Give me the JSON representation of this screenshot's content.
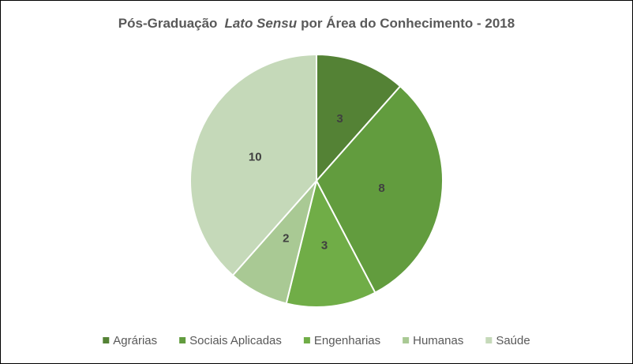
{
  "chart_data": {
    "type": "pie",
    "title": [
      "Pós-Graduação",
      "Lato Sensu",
      "por Área do Conhecimento - 2018"
    ],
    "categories": [
      "Agrárias",
      "Sociais Aplicadas",
      "Engenharias",
      "Humanas",
      "Saúde"
    ],
    "values": [
      3,
      8,
      3,
      2,
      10
    ],
    "colors": [
      "#548235",
      "#629c3e",
      "#70ad47",
      "#a9c994",
      "#c5d9b9"
    ],
    "legend": "bottom"
  }
}
